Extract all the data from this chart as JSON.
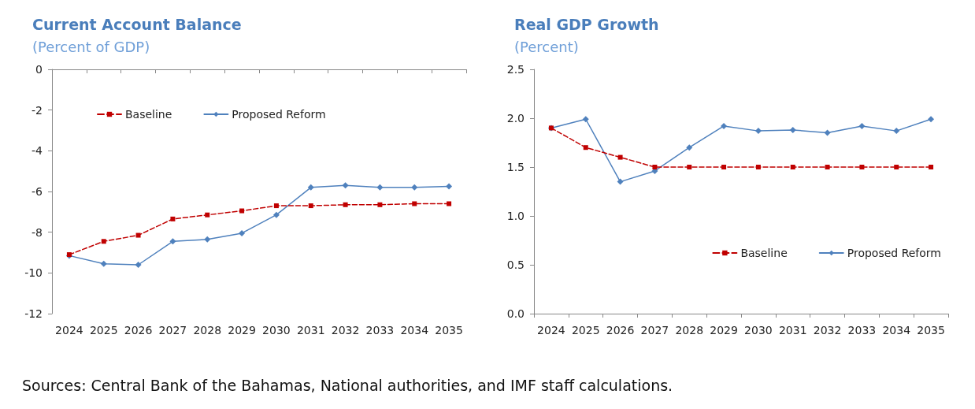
{
  "chart_data": [
    {
      "type": "line",
      "title": "Current Account Balance",
      "subtitle": "(Percent of GDP)",
      "categories": [
        "2024",
        "2025",
        "2026",
        "2027",
        "2028",
        "2029",
        "2030",
        "2031",
        "2032",
        "2033",
        "2034",
        "2035"
      ],
      "series": [
        {
          "name": "Baseline",
          "color": "#c00000",
          "marker": "square",
          "line_style": "dashed",
          "values": [
            -9.1,
            -8.45,
            -8.15,
            -7.35,
            -7.15,
            -6.95,
            -6.7,
            -6.7,
            -6.65,
            -6.65,
            -6.6,
            -6.6
          ]
        },
        {
          "name": "Proposed Reform",
          "color": "#4f81bd",
          "marker": "diamond",
          "line_style": "solid",
          "values": [
            -9.15,
            -9.55,
            -9.6,
            -8.45,
            -8.35,
            -8.05,
            -7.15,
            -5.8,
            -5.7,
            -5.8,
            -5.8,
            -5.75
          ]
        }
      ],
      "ylim": [
        -12,
        0
      ],
      "yticks": [
        -12,
        -10,
        -8,
        -6,
        -4,
        -2,
        0
      ],
      "legend": "top left",
      "annotations": [
        "Sources: Central Bank of the Bahamas, National authorities, and IMF staff calculations."
      ]
    },
    {
      "type": "line",
      "title": "Real GDP Growth",
      "subtitle": "(Percent)",
      "categories": [
        "2024",
        "2025",
        "2026",
        "2027",
        "2028",
        "2029",
        "2030",
        "2031",
        "2032",
        "2033",
        "2034",
        "2035"
      ],
      "series": [
        {
          "name": "Baseline",
          "color": "#c00000",
          "marker": "square",
          "line_style": "dashed",
          "values": [
            1.9,
            1.7,
            1.6,
            1.5,
            1.5,
            1.5,
            1.5,
            1.5,
            1.5,
            1.5,
            1.5,
            1.5
          ]
        },
        {
          "name": "Proposed Reform",
          "color": "#4f81bd",
          "marker": "diamond",
          "line_style": "solid",
          "values": [
            1.9,
            1.99,
            1.35,
            1.46,
            1.7,
            1.92,
            1.87,
            1.88,
            1.85,
            1.92,
            1.87,
            1.99
          ]
        }
      ],
      "ylim": [
        0,
        2.5
      ],
      "yticks": [
        {
          "value": 0,
          "label": "0.0"
        },
        {
          "value": 0.5,
          "label": "0.5"
        },
        {
          "value": 1,
          "label": "1.0"
        },
        {
          "value": 1.5,
          "label": "1.5"
        },
        {
          "value": 2,
          "label": "2.0"
        },
        {
          "value": 2.5,
          "label": "2.5"
        }
      ],
      "legend": "bottom right"
    }
  ]
}
